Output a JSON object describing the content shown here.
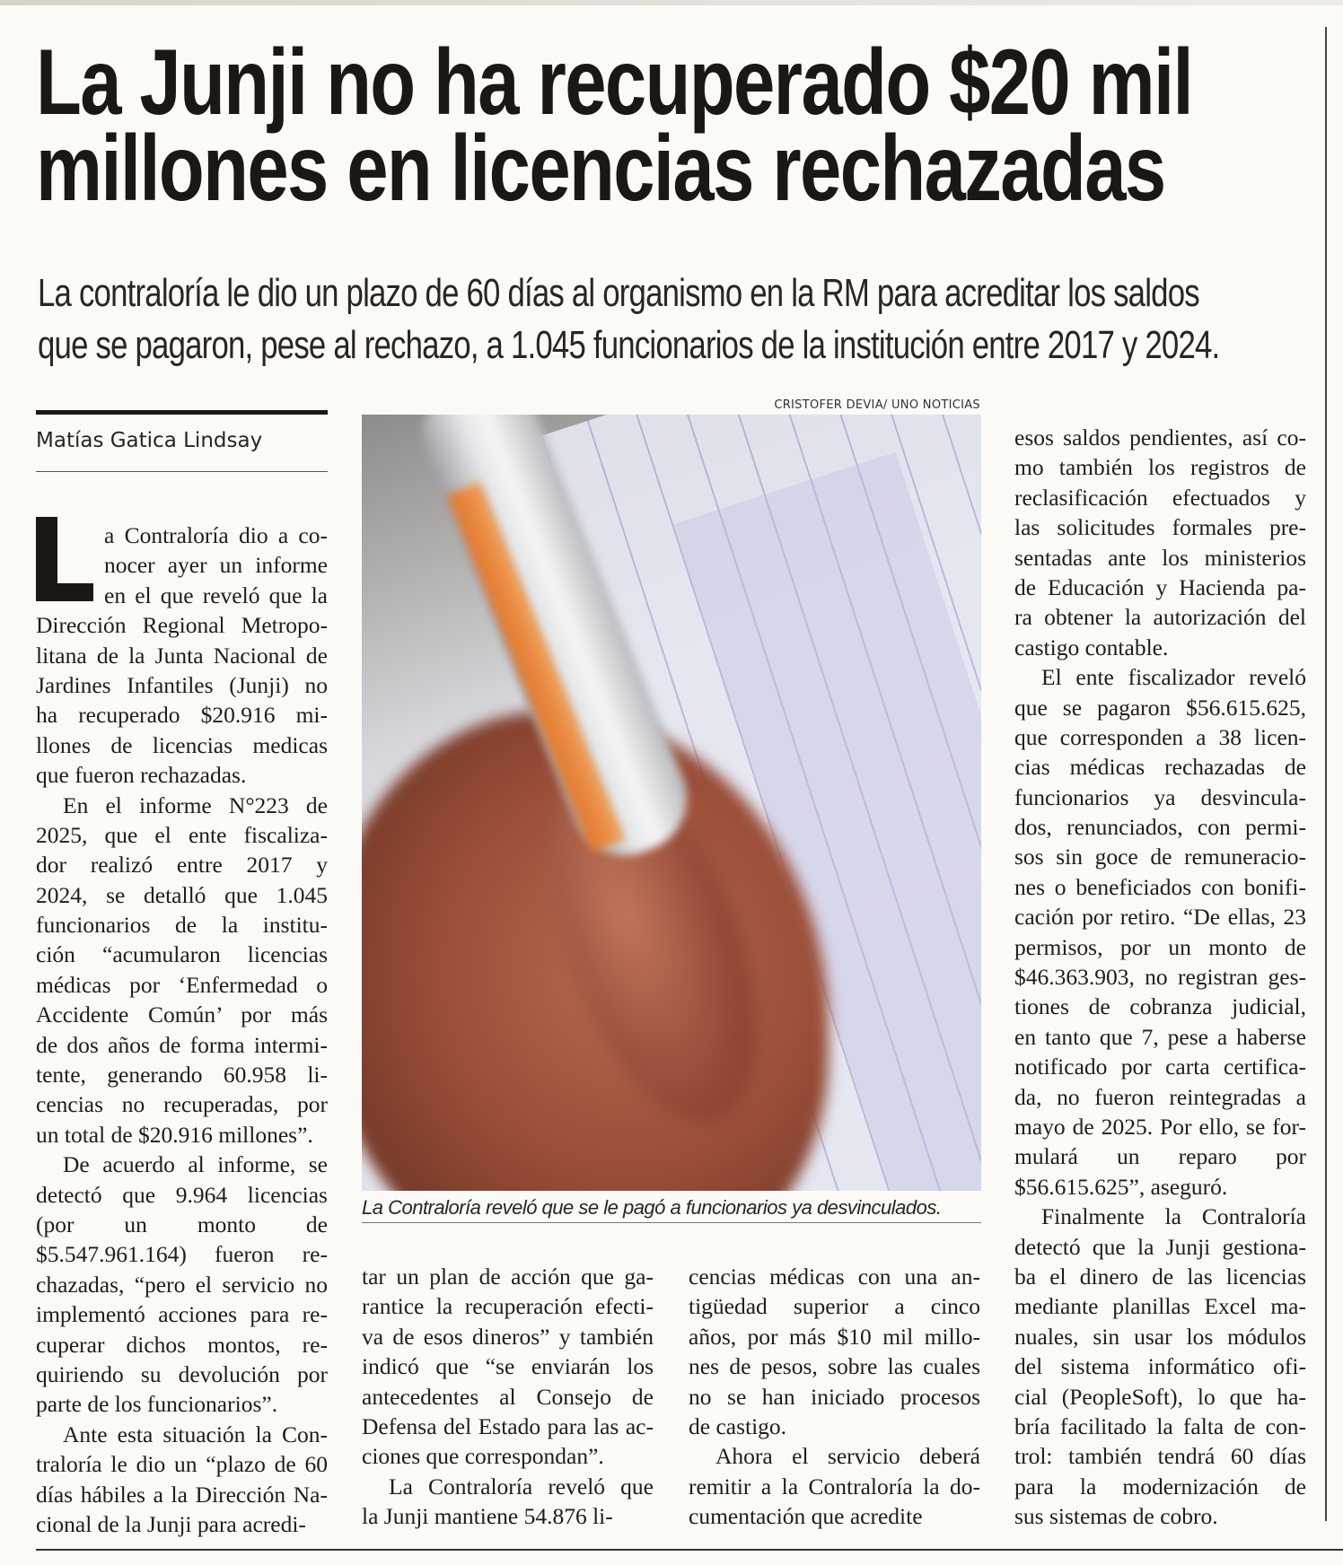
{
  "article": {
    "headline_lines": [
      "La Junji no ha recuperado $20 mil",
      "millones en licencias rechazadas"
    ],
    "deck_lines": [
      "La contraloría le dio un plazo de 60 días al organismo en la RM para acreditar los saldos",
      "que se pagaron, pese al rechazo, a 1.045 funcionarios de la institución entre 2017 y 2024."
    ],
    "byline": "Matías Gatica Lindsay",
    "drop_cap": "L",
    "photo": {
      "credit": "CRISTOFER DEVIA/ UNO NOTICIAS",
      "caption": "La Contraloría reveló que se le pagó a funcionarios ya desvinculados.",
      "colors": {
        "pen_accent": "#e8701f",
        "form_lines": "#b9b6d9"
      }
    },
    "columns": [
      {
        "paragraphs": [
          [
            "a Contraloría dio a co-",
            "nocer ayer un informe",
            "en el que reveló que la",
            "Dirección Regional Metropo-",
            "litana de la Junta Nacional de",
            "Jardines Infantiles (Junji) no",
            "ha recuperado $20.916 mi-",
            "llones de licencias medicas",
            "que fueron rechazadas."
          ],
          [
            "En el informe N°223 de",
            "2025, que el ente fiscaliza-",
            "dor realizó entre 2017 y",
            "2024, se detalló que 1.045",
            "funcionarios de la institu-",
            "ción “acumularon licencias",
            "médicas por ‘Enfermedad o",
            "Accidente Común’ por más",
            "de dos años de forma intermi-",
            "tente, generando 60.958 li-",
            "cencias no recuperadas, por",
            "un total de $20.916 millones”."
          ],
          [
            "De acuerdo al informe, se",
            "detectó que 9.964 licencias",
            "(por un monto de",
            "$5.547.961.164) fueron re-",
            "chazadas, “pero el servicio no",
            "implementó acciones para re-",
            "cuperar dichos montos, re-",
            "quiriendo su devolución por",
            "parte de los funcionarios”."
          ],
          [
            "Ante esta situación la Con-",
            "traloría le dio un “plazo de 60",
            "días hábiles a la Dirección Na-",
            "cional de la Junji para acredi-"
          ]
        ]
      },
      {
        "paragraphs": [
          [
            "tar un plan de acción que ga-",
            "rantice la recuperación efecti-",
            "va de esos dineros” y también",
            "indicó que “se enviarán los",
            "antecedentes al Consejo de",
            "Defensa del Estado para las ac-",
            "ciones que correspondan”."
          ],
          [
            "La Contraloría reveló que",
            "la Junji mantiene 54.876 li-"
          ]
        ]
      },
      {
        "paragraphs": [
          [
            "cencias médicas con una an-",
            "tigüedad superior a cinco",
            "años, por más $10 mil millo-",
            "nes de pesos, sobre las cuales",
            "no se han iniciado procesos",
            "de castigo."
          ],
          [
            "Ahora el servicio deberá",
            "remitir a la Contraloría la do-",
            "cumentación que acredite"
          ]
        ]
      },
      {
        "paragraphs": [
          [
            "esos saldos pendientes, así co-",
            "mo también los registros de",
            "reclasificación efectuados y",
            "las solicitudes formales pre-",
            "sentadas ante los ministerios",
            "de Educación y Hacienda pa-",
            "ra obtener la autorización del",
            "castigo contable."
          ],
          [
            "El ente fiscalizador reveló",
            "que se pagaron $56.615.625,",
            "que corresponden a 38 licen-",
            "cias médicas rechazadas de",
            "funcionarios ya desvincula-",
            "dos, renunciados, con permi-",
            "sos sin goce de remuneracio-",
            "nes o beneficiados con bonifi-",
            "cación por retiro. “De ellas, 23",
            "permisos, por un monto de",
            "$46.363.903, no registran ges-",
            "tiones de cobranza judicial,",
            "en tanto que 7, pese a haberse",
            "notificado por carta certifica-",
            "da, no fueron reintegradas a",
            "mayo de 2025. Por ello, se for-",
            "mulará un reparo por",
            "$56.615.625”, aseguró."
          ],
          [
            "Finalmente la Contraloría",
            "detectó que la Junji gestiona-",
            "ba el dinero de las licencias",
            "mediante planillas Excel ma-",
            "nuales, sin usar los módulos",
            "del sistema informático ofi-",
            "cial (PeopleSoft), lo que ha-",
            "bría facilitado la falta de con-",
            "trol: también tendrá 60 días",
            "para la modernización de",
            "sus sistemas de cobro."
          ]
        ]
      }
    ]
  }
}
